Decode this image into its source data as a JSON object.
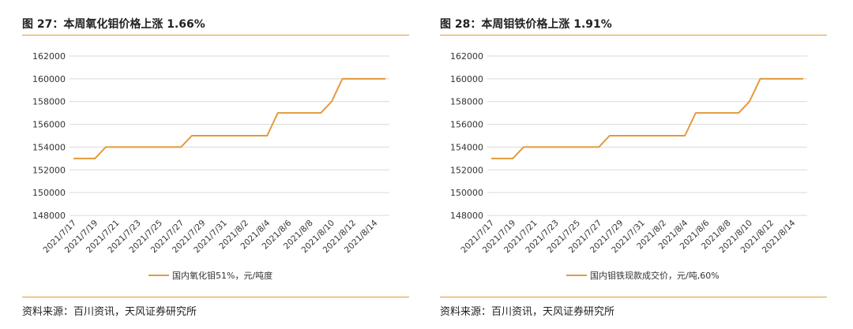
{
  "panels": [
    {
      "title": "图 27：本周氧化钼价格上涨 1.66%",
      "source": "资料来源：百川资讯，天风证券研究所"
    },
    {
      "title": "图 28：本周钼铁价格上涨 1.91%",
      "source": "资料来源：百川资讯，天风证券研究所"
    }
  ],
  "chart_data": [
    {
      "type": "line",
      "x_tick_labels": [
        "2021/7/17",
        "2021/7/19",
        "2021/7/21",
        "2021/7/23",
        "2021/7/25",
        "2021/7/27",
        "2021/7/29",
        "2021/7/31",
        "2021/8/2",
        "2021/8/4",
        "2021/8/6",
        "2021/8/8",
        "2021/8/10",
        "2021/8/12",
        "2021/8/14"
      ],
      "x": [
        "2021/7/17",
        "2021/7/18",
        "2021/7/19",
        "2021/7/20",
        "2021/7/21",
        "2021/7/22",
        "2021/7/23",
        "2021/7/24",
        "2021/7/25",
        "2021/7/26",
        "2021/7/27",
        "2021/7/28",
        "2021/7/29",
        "2021/7/30",
        "2021/7/31",
        "2021/8/1",
        "2021/8/2",
        "2021/8/3",
        "2021/8/4",
        "2021/8/5",
        "2021/8/6",
        "2021/8/7",
        "2021/8/8",
        "2021/8/9",
        "2021/8/10",
        "2021/8/11",
        "2021/8/12",
        "2021/8/13",
        "2021/8/14",
        "2021/8/15"
      ],
      "series": [
        {
          "name": "国内氧化钼51%，元/吨度",
          "values": [
            153000,
            153000,
            153000,
            154000,
            154000,
            154000,
            154000,
            154000,
            154000,
            154000,
            154000,
            155000,
            155000,
            155000,
            155000,
            155000,
            155000,
            155000,
            155000,
            157000,
            157000,
            157000,
            157000,
            157000,
            158000,
            160000,
            160000,
            160000,
            160000,
            160000
          ]
        }
      ],
      "y_ticks": [
        148000,
        150000,
        152000,
        154000,
        156000,
        158000,
        160000,
        162000
      ],
      "ylim": [
        148000,
        162000
      ],
      "grid": true,
      "legend_position": "bottom",
      "line_color": "#e39a3b"
    },
    {
      "type": "line",
      "x_tick_labels": [
        "2021/7/17",
        "2021/7/19",
        "2021/7/21",
        "2021/7/23",
        "2021/7/25",
        "2021/7/27",
        "2021/7/29",
        "2021/7/31",
        "2021/8/2",
        "2021/8/4",
        "2021/8/6",
        "2021/8/8",
        "2021/8/10",
        "2021/8/12",
        "2021/8/14"
      ],
      "x": [
        "2021/7/17",
        "2021/7/18",
        "2021/7/19",
        "2021/7/20",
        "2021/7/21",
        "2021/7/22",
        "2021/7/23",
        "2021/7/24",
        "2021/7/25",
        "2021/7/26",
        "2021/7/27",
        "2021/7/28",
        "2021/7/29",
        "2021/7/30",
        "2021/7/31",
        "2021/8/1",
        "2021/8/2",
        "2021/8/3",
        "2021/8/4",
        "2021/8/5",
        "2021/8/6",
        "2021/8/7",
        "2021/8/8",
        "2021/8/9",
        "2021/8/10",
        "2021/8/11",
        "2021/8/12",
        "2021/8/13",
        "2021/8/14",
        "2021/8/15"
      ],
      "series": [
        {
          "name": "国内钼铁现款成交价，元/吨,60%",
          "values": [
            153000,
            153000,
            153000,
            154000,
            154000,
            154000,
            154000,
            154000,
            154000,
            154000,
            154000,
            155000,
            155000,
            155000,
            155000,
            155000,
            155000,
            155000,
            155000,
            157000,
            157000,
            157000,
            157000,
            157000,
            158000,
            160000,
            160000,
            160000,
            160000,
            160000
          ]
        }
      ],
      "y_ticks": [
        148000,
        150000,
        152000,
        154000,
        156000,
        158000,
        160000,
        162000
      ],
      "ylim": [
        148000,
        162000
      ],
      "grid": true,
      "legend_position": "bottom",
      "line_color": "#e39a3b"
    }
  ]
}
